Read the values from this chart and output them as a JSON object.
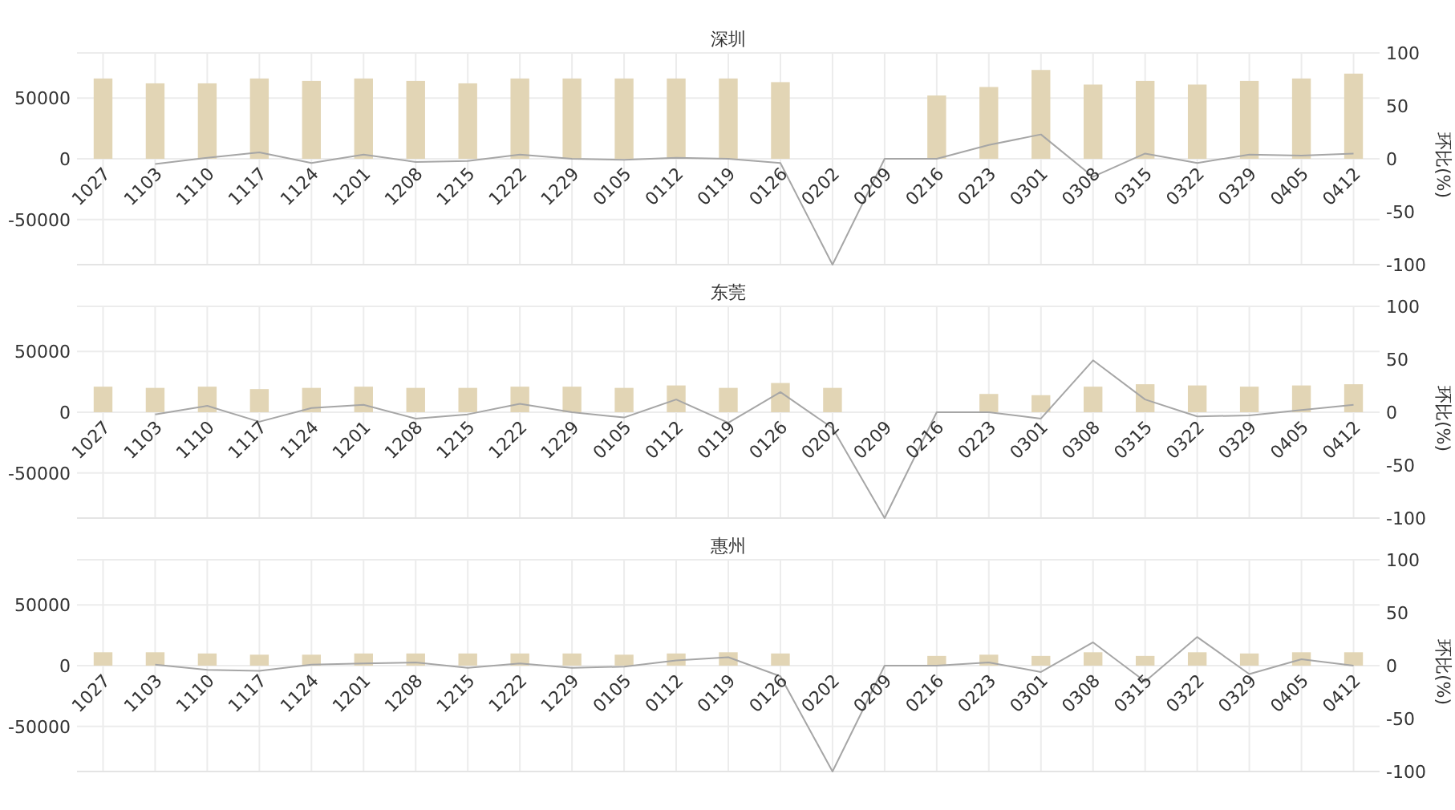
{
  "chart_data": [
    {
      "type": "bar",
      "title": "深圳",
      "y2label": "环比(%)",
      "categories": [
        "1027",
        "1103",
        "1110",
        "1117",
        "1124",
        "1201",
        "1208",
        "1215",
        "1222",
        "1229",
        "0105",
        "0112",
        "0119",
        "0126",
        "0202",
        "0209",
        "0216",
        "0223",
        "0301",
        "0308",
        "0315",
        "0322",
        "0329",
        "0405",
        "0412"
      ],
      "series": [
        {
          "color": "#e2d5b5",
          "values": [
            66000,
            62000,
            62000,
            66000,
            64000,
            66000,
            64000,
            62000,
            66000,
            66000,
            66000,
            66000,
            66000,
            63000,
            null,
            null,
            52000,
            59000,
            73000,
            61000,
            64000,
            61000,
            64000,
            66000,
            70000
          ]
        },
        {
          "type": "line",
          "axis": "y2",
          "color": "#a6a6a6",
          "values": [
            null,
            -5,
            1,
            6,
            -4,
            4,
            -3,
            -2,
            4,
            0,
            -1,
            1,
            0,
            -4,
            -100,
            0,
            0,
            13,
            23,
            -17,
            5,
            -4,
            4,
            3,
            5
          ]
        }
      ],
      "ylim": [
        -87000,
        87000
      ],
      "yticks": [
        -50000,
        0,
        50000
      ],
      "y2lim": [
        -100,
        100
      ],
      "y2ticks": [
        -100,
        -50,
        0,
        50,
        100
      ],
      "grid": true
    },
    {
      "type": "bar",
      "title": "东莞",
      "y2label": "环比(%)",
      "categories": [
        "1027",
        "1103",
        "1110",
        "1117",
        "1124",
        "1201",
        "1208",
        "1215",
        "1222",
        "1229",
        "0105",
        "0112",
        "0119",
        "0126",
        "0202",
        "0209",
        "0216",
        "0223",
        "0301",
        "0308",
        "0315",
        "0322",
        "0329",
        "0405",
        "0412"
      ],
      "series": [
        {
          "color": "#e2d5b5",
          "values": [
            21000,
            20000,
            21000,
            19000,
            20000,
            21000,
            20000,
            20000,
            21000,
            21000,
            20000,
            22000,
            20000,
            24000,
            20000,
            null,
            null,
            15000,
            14000,
            21000,
            23000,
            22000,
            21000,
            22000,
            23000
          ]
        },
        {
          "type": "line",
          "axis": "y2",
          "color": "#a6a6a6",
          "values": [
            null,
            -2,
            6,
            -9,
            4,
            7,
            -6,
            -2,
            8,
            0,
            -5,
            12,
            -10,
            19,
            -15,
            -100,
            0,
            0,
            -6,
            49,
            12,
            -4,
            -3,
            2,
            7
          ]
        }
      ],
      "ylim": [
        -87000,
        87000
      ],
      "yticks": [
        -50000,
        0,
        50000
      ],
      "y2lim": [
        -100,
        100
      ],
      "y2ticks": [
        -100,
        -50,
        0,
        50,
        100
      ],
      "grid": true
    },
    {
      "type": "bar",
      "title": "惠州",
      "y2label": "环比(%)",
      "categories": [
        "1027",
        "1103",
        "1110",
        "1117",
        "1124",
        "1201",
        "1208",
        "1215",
        "1222",
        "1229",
        "0105",
        "0112",
        "0119",
        "0126",
        "0202",
        "0209",
        "0216",
        "0223",
        "0301",
        "0308",
        "0315",
        "0322",
        "0329",
        "0405",
        "0412"
      ],
      "series": [
        {
          "color": "#e2d5b5",
          "values": [
            11000,
            11000,
            10000,
            9000,
            9000,
            10000,
            10000,
            10000,
            10000,
            10000,
            9000,
            10000,
            11000,
            10000,
            null,
            null,
            8000,
            9000,
            8000,
            11000,
            8000,
            11000,
            10000,
            11000,
            11000
          ]
        },
        {
          "type": "line",
          "axis": "y2",
          "color": "#a6a6a6",
          "values": [
            null,
            1,
            -4,
            -5,
            1,
            2,
            3,
            -2,
            2,
            -2,
            -1,
            5,
            8,
            -10,
            -100,
            0,
            0,
            3,
            -6,
            22,
            -15,
            27,
            -8,
            6,
            0
          ]
        }
      ],
      "ylim": [
        -87000,
        87000
      ],
      "yticks": [
        -50000,
        0,
        50000
      ],
      "y2lim": [
        -100,
        100
      ],
      "y2ticks": [
        -100,
        -50,
        0,
        50,
        100
      ],
      "grid": true
    }
  ]
}
